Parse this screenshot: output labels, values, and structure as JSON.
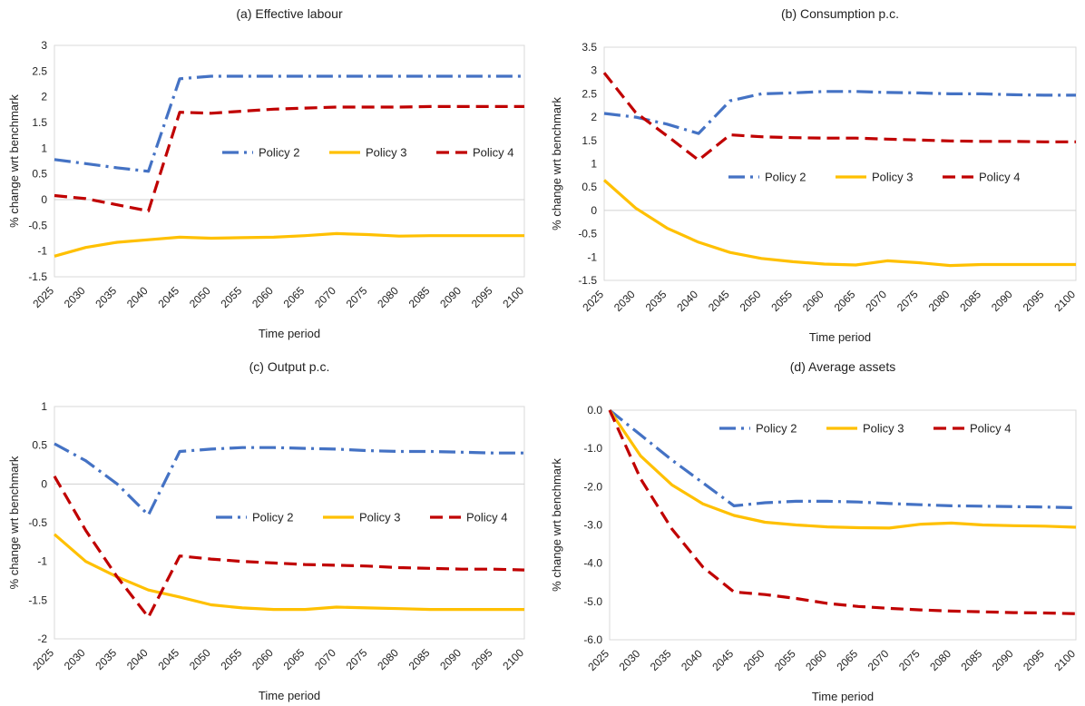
{
  "chart_data": [
    {
      "type": "line",
      "title": "(a) Effective labour",
      "xlabel": "Time period",
      "ylabel": "% change wrt benchmark",
      "x": [
        "2025",
        "2030",
        "2035",
        "2040",
        "2045",
        "2050",
        "2055",
        "2060",
        "2065",
        "2070",
        "2075",
        "2080",
        "2085",
        "2090",
        "2095",
        "2100"
      ],
      "ylim": [
        -1.5,
        3
      ],
      "yticks": [
        "-1.5",
        "-1",
        "-0.5",
        "0",
        "0.5",
        "1",
        "1.5",
        "2",
        "2.5",
        "3"
      ],
      "legend_position": "middle-right",
      "series": [
        {
          "name": "Policy 2",
          "color": "#4472c4",
          "style": "dashdot",
          "values": [
            0.78,
            0.7,
            0.62,
            0.55,
            2.35,
            2.4,
            2.4,
            2.4,
            2.4,
            2.4,
            2.4,
            2.4,
            2.4,
            2.4,
            2.4,
            2.4
          ]
        },
        {
          "name": "Policy 3",
          "color": "#ffc000",
          "style": "solid",
          "values": [
            -1.1,
            -0.93,
            -0.83,
            -0.78,
            -0.73,
            -0.75,
            -0.74,
            -0.73,
            -0.7,
            -0.66,
            -0.68,
            -0.71,
            -0.7,
            -0.7,
            -0.7,
            -0.7
          ]
        },
        {
          "name": "Policy 4",
          "color": "#c00000",
          "style": "dashed",
          "values": [
            0.08,
            0.02,
            -0.1,
            -0.22,
            1.7,
            1.68,
            1.72,
            1.76,
            1.78,
            1.8,
            1.8,
            1.8,
            1.81,
            1.81,
            1.81,
            1.81
          ]
        }
      ]
    },
    {
      "type": "line",
      "title": "(b) Consumption p.c.",
      "xlabel": "Time period",
      "ylabel": "% change wrt benchmark",
      "x": [
        "2025",
        "2030",
        "2035",
        "2040",
        "2045",
        "2050",
        "2055",
        "2060",
        "2065",
        "2070",
        "2075",
        "2080",
        "2085",
        "2090",
        "2095",
        "2100"
      ],
      "ylim": [
        -1.5,
        3.5
      ],
      "yticks": [
        "-1.5",
        "-1",
        "-0.5",
        "0",
        "0.5",
        "1",
        "1.5",
        "2",
        "2.5",
        "3",
        "3.5"
      ],
      "legend_position": "middle",
      "series": [
        {
          "name": "Policy 2",
          "color": "#4472c4",
          "style": "dashdot",
          "values": [
            2.08,
            2.0,
            1.85,
            1.65,
            2.35,
            2.5,
            2.52,
            2.55,
            2.55,
            2.53,
            2.52,
            2.5,
            2.5,
            2.48,
            2.47,
            2.47
          ]
        },
        {
          "name": "Policy 3",
          "color": "#ffc000",
          "style": "solid",
          "values": [
            0.65,
            0.05,
            -0.38,
            -0.68,
            -0.9,
            -1.03,
            -1.1,
            -1.15,
            -1.17,
            -1.08,
            -1.12,
            -1.18,
            -1.16,
            -1.16,
            -1.16,
            -1.16
          ]
        },
        {
          "name": "Policy 4",
          "color": "#c00000",
          "style": "dashed",
          "values": [
            2.95,
            2.1,
            1.6,
            1.08,
            1.62,
            1.58,
            1.56,
            1.55,
            1.55,
            1.53,
            1.51,
            1.49,
            1.48,
            1.48,
            1.47,
            1.47
          ]
        }
      ]
    },
    {
      "type": "line",
      "title": "(c) Output p.c.",
      "xlabel": "Time period",
      "ylabel": "% change wrt benchmark",
      "x": [
        "2025",
        "2030",
        "2035",
        "2040",
        "2045",
        "2050",
        "2055",
        "2060",
        "2065",
        "2070",
        "2075",
        "2080",
        "2085",
        "2090",
        "2095",
        "2100"
      ],
      "ylim": [
        -2,
        1
      ],
      "yticks": [
        "-2",
        "-1.5",
        "-1",
        "-0.5",
        "0",
        "0.5",
        "1"
      ],
      "legend_position": "middle-right",
      "series": [
        {
          "name": "Policy 2",
          "color": "#4472c4",
          "style": "dashdot",
          "values": [
            0.52,
            0.3,
            0.0,
            -0.4,
            0.42,
            0.45,
            0.47,
            0.47,
            0.46,
            0.45,
            0.43,
            0.42,
            0.42,
            0.41,
            0.4,
            0.4
          ]
        },
        {
          "name": "Policy 3",
          "color": "#ffc000",
          "style": "solid",
          "values": [
            -0.65,
            -1.0,
            -1.2,
            -1.37,
            -1.46,
            -1.56,
            -1.6,
            -1.62,
            -1.62,
            -1.59,
            -1.6,
            -1.61,
            -1.62,
            -1.62,
            -1.62,
            -1.62
          ]
        },
        {
          "name": "Policy 4",
          "color": "#c00000",
          "style": "dashed",
          "values": [
            0.1,
            -0.6,
            -1.2,
            -1.72,
            -0.93,
            -0.97,
            -1.0,
            -1.02,
            -1.04,
            -1.05,
            -1.06,
            -1.08,
            -1.09,
            -1.1,
            -1.1,
            -1.11
          ]
        }
      ]
    },
    {
      "type": "line",
      "title": "(d) Average assets",
      "xlabel": "Time period",
      "ylabel": "% change wrt benchmark",
      "x": [
        "2025",
        "2030",
        "2035",
        "2040",
        "2045",
        "2050",
        "2055",
        "2060",
        "2065",
        "2070",
        "2075",
        "2080",
        "2085",
        "2090",
        "2095",
        "2100"
      ],
      "ylim": [
        -6,
        0
      ],
      "yticks": [
        "-6.0",
        "-5.0",
        "-4.0",
        "-3.0",
        "-2.0",
        "-1.0",
        "0.0"
      ],
      "legend_position": "top",
      "series": [
        {
          "name": "Policy 2",
          "color": "#4472c4",
          "style": "dashdot",
          "values": [
            0.0,
            -0.65,
            -1.3,
            -1.9,
            -2.5,
            -2.42,
            -2.38,
            -2.38,
            -2.4,
            -2.44,
            -2.47,
            -2.5,
            -2.51,
            -2.52,
            -2.53,
            -2.55
          ]
        },
        {
          "name": "Policy 3",
          "color": "#ffc000",
          "style": "solid",
          "values": [
            0.0,
            -1.2,
            -1.95,
            -2.45,
            -2.75,
            -2.93,
            -3.0,
            -3.05,
            -3.07,
            -3.08,
            -2.98,
            -2.95,
            -3.0,
            -3.02,
            -3.03,
            -3.06
          ]
        },
        {
          "name": "Policy 4",
          "color": "#c00000",
          "style": "dashed",
          "values": [
            0.0,
            -1.8,
            -3.1,
            -4.1,
            -4.75,
            -4.82,
            -4.92,
            -5.05,
            -5.13,
            -5.18,
            -5.22,
            -5.25,
            -5.27,
            -5.29,
            -5.3,
            -5.32
          ]
        }
      ]
    }
  ]
}
